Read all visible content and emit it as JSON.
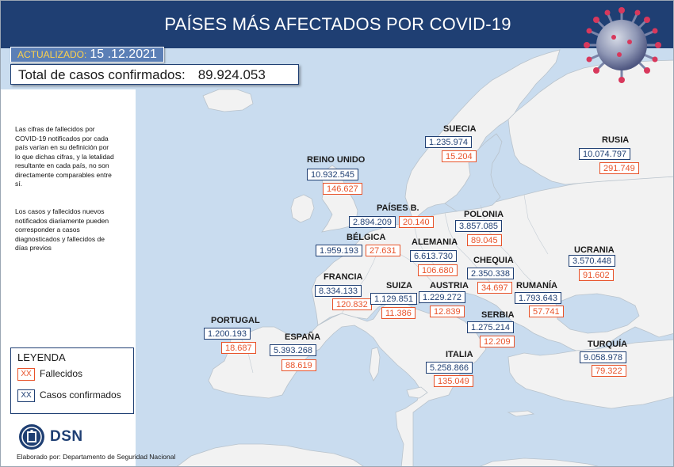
{
  "header": {
    "title": "PAÍSES MÁS AFECTADOS POR COVID-19"
  },
  "updated": {
    "label": "ACTUALIZADO:",
    "date": "15 .12.2021"
  },
  "total": {
    "label": "Total de casos confirmados:",
    "value": "89.924.053"
  },
  "notes": [
    "Las cifras de fallecidos por COVID-19 notificados por cada país varían en su definición por lo que dichas cifras, y la letalidad resultante en cada país, no son directamente comparables entre sí.",
    "Los casos y fallecidos nuevos notificados diariamente pueden corresponder a casos diagnosticados y fallecidos de días previos"
  ],
  "legend": {
    "title": "LEYENDA",
    "deaths": {
      "symbol": "XX",
      "label": "Fallecidos"
    },
    "cases": {
      "symbol": "XX",
      "label": "Casos confirmados"
    }
  },
  "logo": {
    "text": "DSN"
  },
  "footer": "Elaborado por: Departamento de Seguridad Nacional",
  "colors": {
    "header": "#1f3f73",
    "cases": "#1f3f73",
    "deaths": "#e8532a",
    "land": "#f2f2f2",
    "sea": "#c9dcef"
  },
  "countries": {
    "suecia": {
      "name": "SUECIA",
      "cases": "1.235.974",
      "deaths": "15.204"
    },
    "rusia": {
      "name": "RUSIA",
      "cases": "10.074.797",
      "deaths": "291.749"
    },
    "reino_unido": {
      "name": "REINO UNIDO",
      "cases": "10.932.545",
      "deaths": "146.627"
    },
    "paises_b": {
      "name": "PAÍSES B.",
      "cases": "2.894.209",
      "deaths": "20.140"
    },
    "polonia": {
      "name": "POLONIA",
      "cases": "3.857.085",
      "deaths": "89.045"
    },
    "belgica": {
      "name": "BÉLGICA",
      "cases": "1.959.193",
      "deaths": "27.631"
    },
    "alemania": {
      "name": "ALEMANIA",
      "cases": "6.613.730",
      "deaths": "106.680"
    },
    "ucrania": {
      "name": "UCRANIA",
      "cases": "3.570.448",
      "deaths": "91.602"
    },
    "chequia": {
      "name": "CHEQUIA",
      "cases": "2.350.338",
      "deaths": "34.697"
    },
    "francia": {
      "name": "FRANCIA",
      "cases": "8.334.133",
      "deaths": "120.832"
    },
    "suiza": {
      "name": "SUIZA",
      "cases": "1.129.851",
      "deaths": "11.386"
    },
    "austria": {
      "name": "AUSTRIA",
      "cases": "1.229.272",
      "deaths": "12.839"
    },
    "rumania": {
      "name": "RUMANÍA",
      "cases": "1.793.643",
      "deaths": "57.741"
    },
    "portugal": {
      "name": "PORTUGAL",
      "cases": "1.200.193",
      "deaths": "18.687"
    },
    "serbia": {
      "name": "SERBIA",
      "cases": "1.275.214",
      "deaths": "12.209"
    },
    "espana": {
      "name": "ESPAÑA",
      "cases": "5.393.268",
      "deaths": "88.619"
    },
    "italia": {
      "name": "ITALIA",
      "cases": "5.258.866",
      "deaths": "135.049"
    },
    "turquia": {
      "name": "TURQUÍA",
      "cases": "9.058.978",
      "deaths": "79.322"
    }
  }
}
